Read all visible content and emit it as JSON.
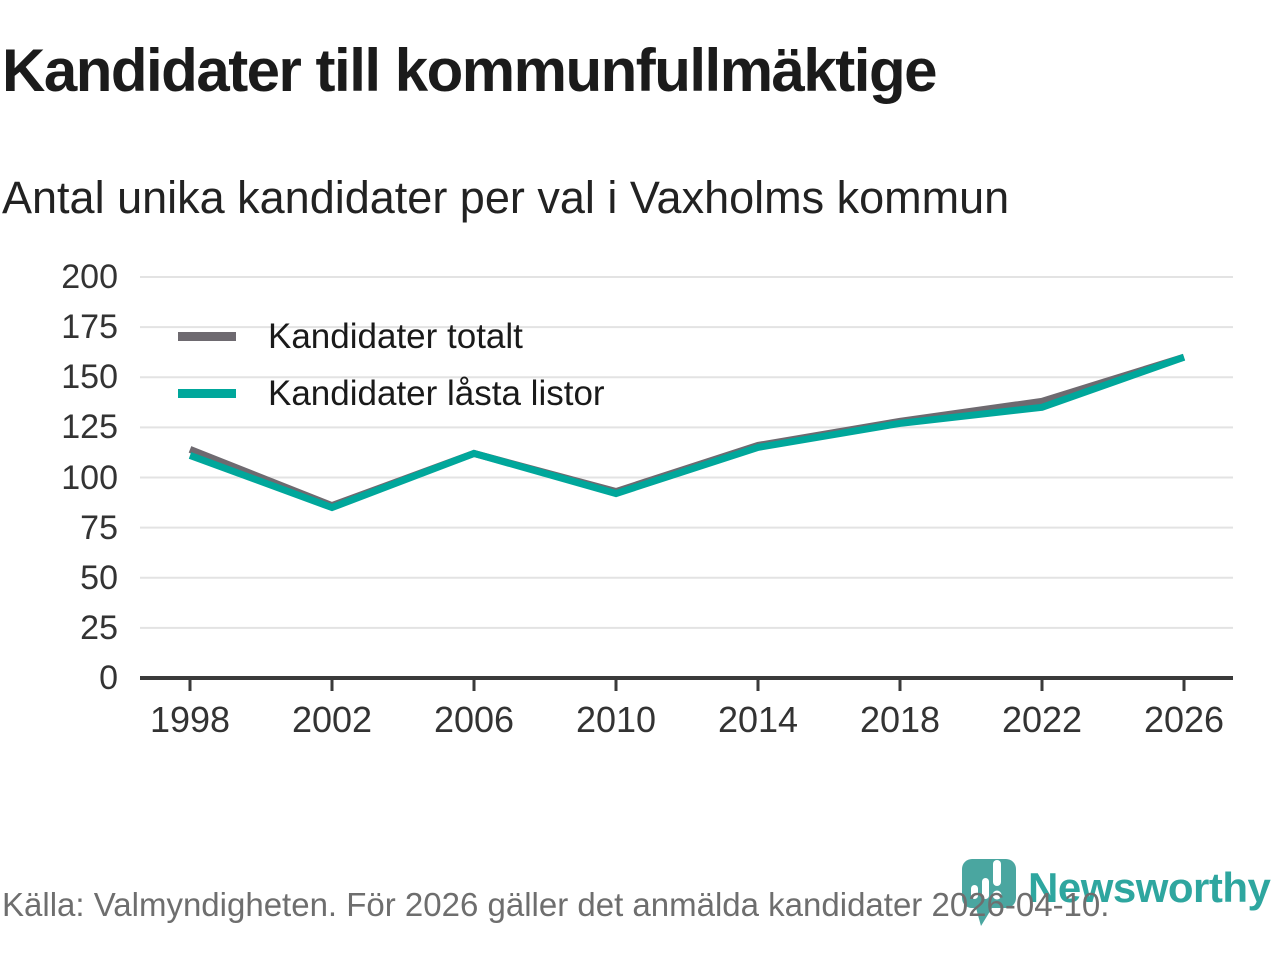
{
  "title": "Kandidater till kommunfullmäktige",
  "subtitle": "Antal unika kandidater per val i Vaxholms kommun",
  "legend": {
    "items": [
      {
        "label": "Kandidater totalt"
      },
      {
        "label": "Kandidater låsta listor"
      }
    ]
  },
  "footer": {
    "source_text": "Källa: Valmyndigheten. För 2026 gäller det anmälda kandidater 2026-04-10."
  },
  "branding": {
    "wordmark": "Newsworthy",
    "pin_color": "#4aa6a0",
    "wordmark_color": "#2ea69f"
  },
  "colors": {
    "grid": "#e3e3e3",
    "axis": "#3a3a3a",
    "tick_text": "#333333",
    "series_total": "#6e6a70",
    "series_locked": "#00a79b"
  },
  "chart_data": {
    "type": "line",
    "title": "Kandidater till kommunfullmäktige",
    "subtitle": "Antal unika kandidater per val i Vaxholms kommun",
    "categories": [
      1998,
      2002,
      2006,
      2010,
      2014,
      2018,
      2022,
      2026
    ],
    "series": [
      {
        "name": "Kandidater totalt",
        "color": "#6e6a70",
        "values": [
          114,
          86,
          112,
          93,
          116,
          128,
          138,
          160
        ]
      },
      {
        "name": "Kandidater låsta listor",
        "color": "#00a79b",
        "values": [
          111,
          85,
          112,
          92,
          115,
          127,
          135,
          160
        ]
      }
    ],
    "xlabel": "",
    "ylabel": "",
    "ylim": [
      0,
      200
    ],
    "yticks": [
      0,
      25,
      50,
      75,
      100,
      125,
      150,
      175,
      200
    ],
    "grid": "horizontal",
    "legend_position": "top-left",
    "source": "Källa: Valmyndigheten. För 2026 gäller det anmälda kandidater 2026-04-10."
  }
}
